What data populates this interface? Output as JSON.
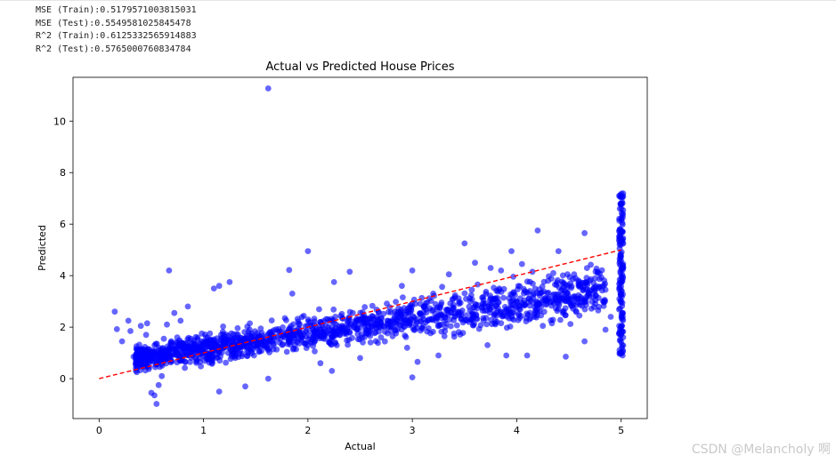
{
  "output": {
    "lines": [
      "MSE (Train):0.5179571003815031",
      "MSE (Test):0.5549581025845478",
      "R^2 (Train):0.6125332565914883",
      "R^2 (Test):0.5765000760834784"
    ]
  },
  "watermark": "CSDN @Melancholy 啊",
  "chart_data": {
    "type": "scatter",
    "title": "Actual vs Predicted House Prices",
    "xlabel": "Actual",
    "ylabel": "Predicted",
    "xlim": [
      -0.25,
      5.25
    ],
    "ylim": [
      -1.55,
      11.7
    ],
    "xticks": [
      0,
      1,
      2,
      3,
      4,
      5
    ],
    "yticks": [
      0,
      2,
      4,
      6,
      8,
      10
    ],
    "grid": false,
    "point_color": "#0000ff",
    "point_alpha": 0.6,
    "reference_line": {
      "x": [
        0,
        5
      ],
      "y": [
        0,
        5
      ],
      "color": "#ff0000",
      "style": "dashed"
    },
    "points": [
      [
        1.62,
        11.27
      ],
      [
        0.67,
        4.2
      ],
      [
        2.0,
        4.95
      ],
      [
        1.82,
        4.22
      ],
      [
        3.5,
        5.25
      ],
      [
        4.2,
        5.75
      ],
      [
        4.65,
        5.65
      ],
      [
        4.4,
        4.95
      ],
      [
        3.95,
        4.95
      ],
      [
        0.15,
        2.6
      ],
      [
        0.17,
        1.92
      ],
      [
        0.22,
        1.45
      ],
      [
        0.28,
        2.25
      ],
      [
        0.3,
        1.85
      ],
      [
        0.33,
        0.85
      ],
      [
        0.37,
        1.07
      ],
      [
        0.42,
        0.72
      ],
      [
        0.45,
        1.7
      ],
      [
        0.48,
        0.45
      ],
      [
        0.5,
        -0.55
      ],
      [
        0.53,
        -0.65
      ],
      [
        0.55,
        -0.98
      ],
      [
        0.57,
        -0.25
      ],
      [
        0.6,
        0.1
      ],
      [
        0.62,
        1.55
      ],
      [
        0.65,
        2.1
      ],
      [
        0.72,
        2.55
      ],
      [
        0.78,
        2.25
      ],
      [
        0.85,
        2.8
      ],
      [
        1.1,
        3.5
      ],
      [
        1.15,
        3.6
      ],
      [
        1.25,
        3.75
      ],
      [
        1.15,
        -0.5
      ],
      [
        1.4,
        -0.3
      ],
      [
        1.62,
        0.0
      ],
      [
        2.12,
        0.6
      ],
      [
        2.23,
        0.3
      ],
      [
        2.5,
        0.8
      ],
      [
        3.0,
        0.05
      ],
      [
        3.05,
        0.65
      ],
      [
        3.25,
        0.9
      ],
      [
        3.9,
        0.9
      ],
      [
        4.1,
        0.9
      ],
      [
        4.47,
        0.85
      ],
      [
        3.0,
        4.2
      ],
      [
        3.35,
        4.05
      ],
      [
        2.4,
        4.15
      ],
      [
        2.25,
        3.75
      ],
      [
        1.85,
        3.3
      ],
      [
        3.6,
        4.5
      ],
      [
        3.75,
        4.3
      ],
      [
        3.85,
        4.2
      ],
      [
        4.05,
        4.45
      ],
      [
        4.15,
        4.15
      ],
      [
        4.35,
        4.1
      ],
      [
        4.3,
        3.8
      ],
      [
        4.55,
        4.05
      ],
      [
        4.75,
        3.9
      ],
      [
        4.85,
        3.45
      ],
      [
        4.2,
        2.6
      ],
      [
        4.25,
        2.05
      ],
      [
        4.45,
        2.6
      ],
      [
        4.6,
        2.45
      ],
      [
        4.78,
        2.65
      ],
      [
        4.9,
        2.4
      ],
      [
        4.85,
        1.9
      ],
      [
        4.65,
        1.45
      ],
      [
        3.72,
        1.3
      ],
      [
        3.4,
        1.75
      ],
      [
        2.95,
        1.2
      ],
      [
        2.7,
        1.6
      ],
      [
        2.55,
        1.9
      ],
      [
        2.9,
        3.6
      ],
      [
        3.2,
        3.3
      ],
      [
        0.4,
        2.05
      ],
      [
        0.46,
        2.15
      ]
    ],
    "dense_bands": [
      {
        "x_range": [
          0.35,
          4.85
        ],
        "count": 1600
      },
      {
        "x_range": [
          4.98,
          5.02
        ],
        "count": 150
      }
    ]
  }
}
